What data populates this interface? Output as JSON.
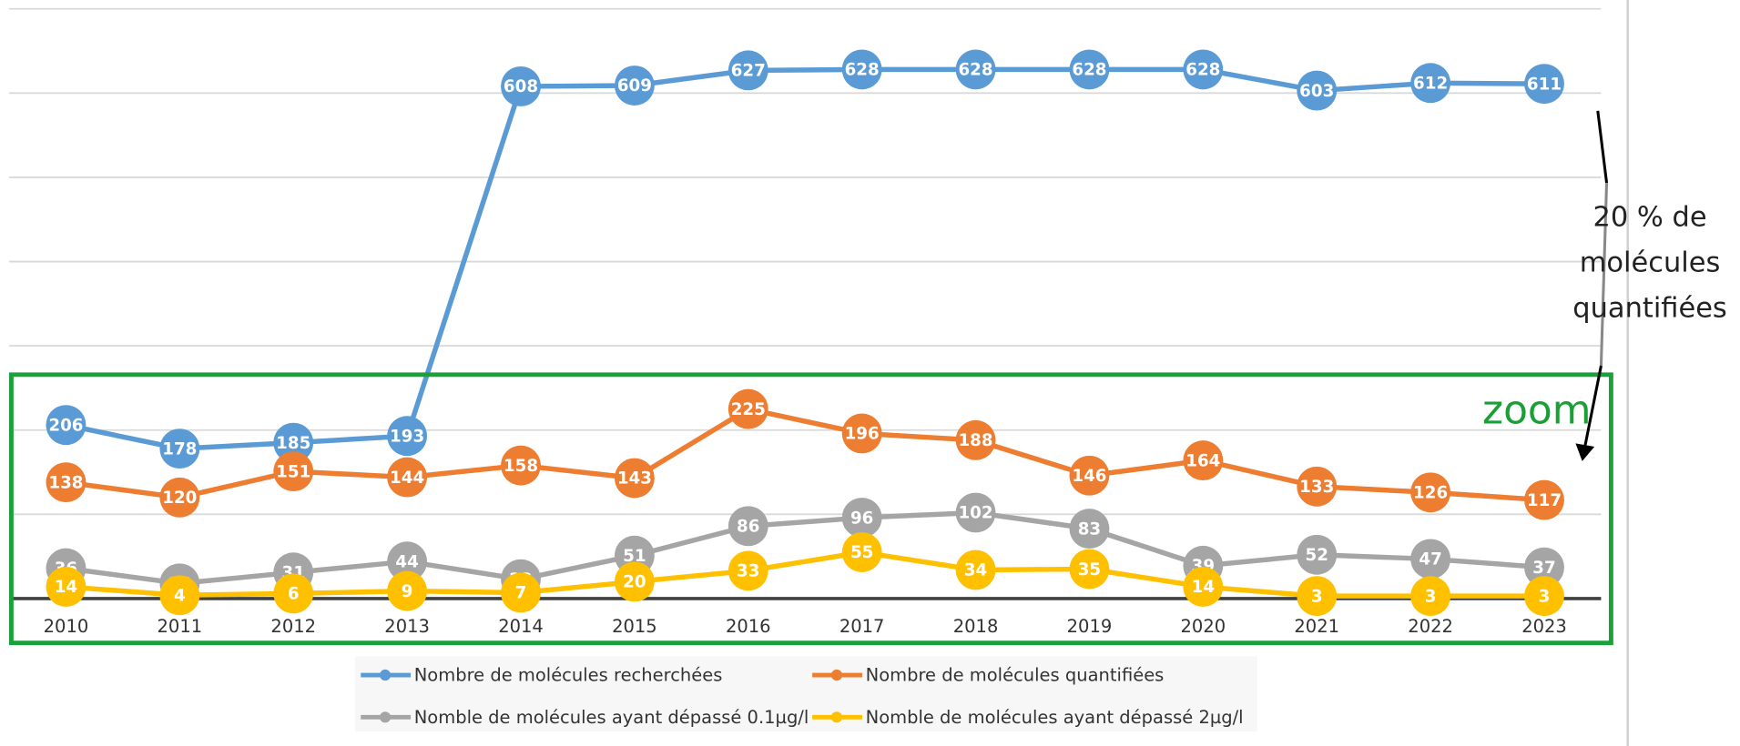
{
  "chart_data": {
    "type": "line",
    "categories": [
      "2010",
      "2011",
      "2012",
      "2013",
      "2014",
      "2015",
      "2016",
      "2017",
      "2018",
      "2019",
      "2020",
      "2021",
      "2022",
      "2023"
    ],
    "series": [
      {
        "name": "Nombre de molécules recherchées",
        "color": "#5b9bd5",
        "values": [
          206,
          178,
          185,
          193,
          608,
          609,
          627,
          628,
          628,
          628,
          628,
          603,
          612,
          611
        ]
      },
      {
        "name": "Nombre de molécules quantifiées",
        "color": "#ed7d31",
        "values": [
          138,
          120,
          151,
          144,
          158,
          143,
          225,
          196,
          188,
          146,
          164,
          133,
          126,
          117
        ]
      },
      {
        "name": "Nomble de molécules ayant dépassé 0.1µg/l",
        "color": "#a5a5a5",
        "values": [
          36,
          18,
          31,
          44,
          23,
          51,
          86,
          96,
          102,
          83,
          39,
          52,
          47,
          37
        ]
      },
      {
        "name": "Nomble de molécules ayant dépassé 2µg/l",
        "color": "#ffc000",
        "values": [
          14,
          4,
          6,
          9,
          7,
          20,
          33,
          55,
          34,
          35,
          14,
          3,
          3,
          3
        ]
      }
    ],
    "ylim": [
      0,
      700
    ],
    "yticks": [
      0,
      100,
      200,
      300,
      400,
      500,
      600,
      700
    ],
    "grid": true,
    "zoom_label": "zoom",
    "note": [
      "20 % de",
      "molécules",
      "quantifiées"
    ]
  }
}
